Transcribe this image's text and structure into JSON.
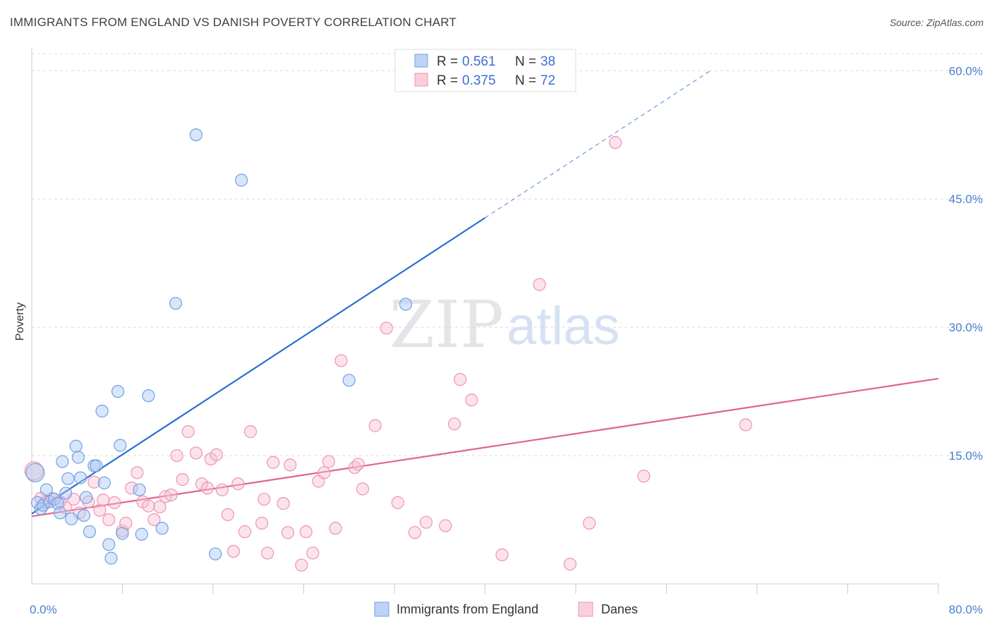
{
  "title": "IMMIGRANTS FROM ENGLAND VS DANISH POVERTY CORRELATION CHART",
  "source": "Source: ZipAtlas.com",
  "watermark": {
    "zip": "ZIP",
    "atlas": "atlas"
  },
  "chart_data": {
    "type": "scatter",
    "ylabel": "Poverty",
    "xlim": [
      0,
      80
    ],
    "ylim": [
      0,
      62
    ],
    "x_tick_labels": [
      {
        "value": 0,
        "label": "0.0%"
      },
      {
        "value": 80,
        "label": "80.0%"
      }
    ],
    "x_minor_ticks": [
      8,
      16,
      24,
      32,
      40,
      48,
      56,
      64,
      72,
      80
    ],
    "y_ticks": [
      {
        "value": 15,
        "label": "15.0%"
      },
      {
        "value": 30,
        "label": "30.0%"
      },
      {
        "value": 45,
        "label": "45.0%"
      },
      {
        "value": 60,
        "label": "60.0%"
      }
    ],
    "grid": true,
    "legend": {
      "placement": "top-center",
      "entries": [
        {
          "r_label": "R =",
          "r_value": "0.561",
          "n_label": "N =",
          "n_value": "38"
        },
        {
          "r_label": "R =",
          "r_value": "0.375",
          "n_label": "N =",
          "n_value": "72"
        }
      ]
    },
    "series": [
      {
        "name": "Immigrants from England",
        "color": "#6fa0e6",
        "fill": "#aac8f2",
        "trend_color": "#2b6fd0",
        "trend": {
          "x0": 0,
          "y0": 8.2,
          "x1": 40,
          "y1": 42.8,
          "dash_to_x": 60,
          "dash_to_y": 60.1
        },
        "points": [
          [
            0.3,
            13.0
          ],
          [
            0.5,
            9.5
          ],
          [
            0.8,
            8.8
          ],
          [
            1.0,
            9.2
          ],
          [
            1.3,
            11.0
          ],
          [
            1.6,
            9.6
          ],
          [
            2.0,
            9.9
          ],
          [
            2.3,
            9.4
          ],
          [
            2.5,
            8.3
          ],
          [
            2.7,
            14.3
          ],
          [
            3.0,
            10.6
          ],
          [
            3.2,
            12.3
          ],
          [
            3.5,
            7.6
          ],
          [
            3.9,
            16.1
          ],
          [
            4.1,
            14.8
          ],
          [
            4.3,
            12.4
          ],
          [
            4.6,
            8.0
          ],
          [
            4.8,
            10.1
          ],
          [
            5.1,
            6.1
          ],
          [
            5.5,
            13.8
          ],
          [
            5.7,
            13.8
          ],
          [
            6.2,
            20.2
          ],
          [
            6.4,
            11.8
          ],
          [
            6.8,
            4.6
          ],
          [
            7.0,
            3.0
          ],
          [
            7.6,
            22.5
          ],
          [
            7.8,
            16.2
          ],
          [
            8.0,
            5.9
          ],
          [
            9.5,
            11.0
          ],
          [
            9.7,
            5.8
          ],
          [
            10.3,
            22.0
          ],
          [
            11.5,
            6.5
          ],
          [
            12.7,
            32.8
          ],
          [
            14.5,
            52.5
          ],
          [
            16.2,
            3.5
          ],
          [
            18.5,
            47.2
          ],
          [
            28.0,
            23.8
          ],
          [
            33.0,
            32.7
          ]
        ]
      },
      {
        "name": "Danes",
        "color": "#ef93b3",
        "fill": "#f7c2d4",
        "trend_color": "#e0638f",
        "trend": {
          "x0": 0,
          "y0": 7.9,
          "x1": 80,
          "y1": 24.0
        },
        "points": [
          [
            0.2,
            13.2
          ],
          [
            0.8,
            10.0
          ],
          [
            1.2,
            9.5
          ],
          [
            1.8,
            10.0
          ],
          [
            2.5,
            9.6
          ],
          [
            3.0,
            8.9
          ],
          [
            3.7,
            9.9
          ],
          [
            4.2,
            8.3
          ],
          [
            5.0,
            9.6
          ],
          [
            5.5,
            11.9
          ],
          [
            6.0,
            8.6
          ],
          [
            6.3,
            9.8
          ],
          [
            6.8,
            7.5
          ],
          [
            7.3,
            9.5
          ],
          [
            8.0,
            6.2
          ],
          [
            8.3,
            7.1
          ],
          [
            8.8,
            11.2
          ],
          [
            9.3,
            13.0
          ],
          [
            9.8,
            9.6
          ],
          [
            10.3,
            9.1
          ],
          [
            10.8,
            7.5
          ],
          [
            11.3,
            9.0
          ],
          [
            11.8,
            10.2
          ],
          [
            12.3,
            10.4
          ],
          [
            12.8,
            15.0
          ],
          [
            13.3,
            12.2
          ],
          [
            13.8,
            17.8
          ],
          [
            14.5,
            15.3
          ],
          [
            15.0,
            11.7
          ],
          [
            15.5,
            11.2
          ],
          [
            15.8,
            14.6
          ],
          [
            16.3,
            15.1
          ],
          [
            16.8,
            11.0
          ],
          [
            17.3,
            8.1
          ],
          [
            17.8,
            3.8
          ],
          [
            18.2,
            11.7
          ],
          [
            18.8,
            6.1
          ],
          [
            19.3,
            17.8
          ],
          [
            20.3,
            7.1
          ],
          [
            20.5,
            9.9
          ],
          [
            20.8,
            3.6
          ],
          [
            21.3,
            14.2
          ],
          [
            22.2,
            9.4
          ],
          [
            22.6,
            6.0
          ],
          [
            22.8,
            13.9
          ],
          [
            23.8,
            2.2
          ],
          [
            24.2,
            6.1
          ],
          [
            24.8,
            3.6
          ],
          [
            25.3,
            12.0
          ],
          [
            25.8,
            13.0
          ],
          [
            26.2,
            14.3
          ],
          [
            26.8,
            6.5
          ],
          [
            27.3,
            26.1
          ],
          [
            28.5,
            13.6
          ],
          [
            28.8,
            14.0
          ],
          [
            29.2,
            11.1
          ],
          [
            30.3,
            18.5
          ],
          [
            31.3,
            29.9
          ],
          [
            32.3,
            9.5
          ],
          [
            33.8,
            6.0
          ],
          [
            34.8,
            7.2
          ],
          [
            37.3,
            18.7
          ],
          [
            37.8,
            23.9
          ],
          [
            38.8,
            21.5
          ],
          [
            41.5,
            3.4
          ],
          [
            44.8,
            35.0
          ],
          [
            47.5,
            2.3
          ],
          [
            49.2,
            7.1
          ],
          [
            51.5,
            51.6
          ],
          [
            54.0,
            12.6
          ],
          [
            63.0,
            18.6
          ],
          [
            36.5,
            6.8
          ]
        ]
      }
    ]
  }
}
